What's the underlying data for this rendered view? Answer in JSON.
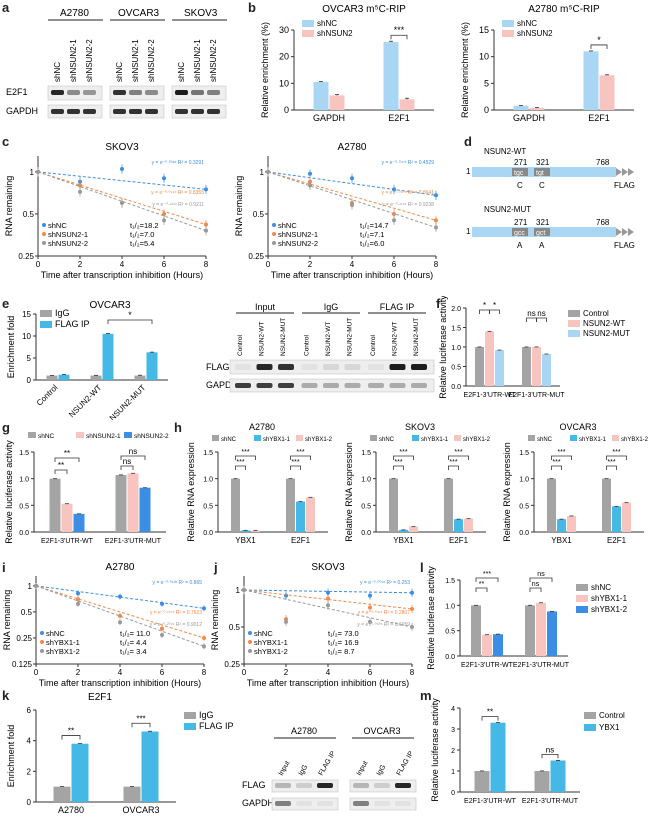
{
  "panel_labels": [
    "a",
    "b",
    "c",
    "d",
    "e",
    "f",
    "g",
    "h",
    "i",
    "j",
    "k",
    "l",
    "m"
  ],
  "colors": {
    "gray": "#a4a4a4",
    "blue": "#45b8e5",
    "pink": "#f7c4c0",
    "lightblue": "#a9d6f3",
    "darkblue": "#3c8ee5",
    "blot_dark": "#222"
  },
  "a": {
    "groups": [
      "A2780",
      "OVCAR3",
      "SKOV3"
    ],
    "lanes": [
      "shNC",
      "shNSUN2-1",
      "shNSUN2-2"
    ],
    "rows": [
      "E2F1",
      "GAPDH"
    ]
  },
  "b": {
    "charts": [
      {
        "title": "OVCAR3 m⁵C-RIP",
        "ylabel": "Relative enrichment (%)",
        "yticks": [
          "0",
          "10",
          "20",
          "30"
        ],
        "categories": [
          "GAPDH",
          "E2F1"
        ],
        "legend": [
          "shNC",
          "shNSUN2"
        ],
        "sig": "***"
      },
      {
        "title": "A2780  m⁵C-RIP",
        "ylabel": "Relative enrichment (%)",
        "yticks": [
          "0",
          "5",
          "10",
          "15"
        ],
        "categories": [
          "GAPDH",
          "E2F1"
        ],
        "legend": [
          "shNC",
          "shNSUN2"
        ],
        "sig": "*"
      }
    ]
  },
  "c": {
    "charts": [
      {
        "title": "SKOV3",
        "ylabel": "RNA remaining",
        "xlabel": "Time after transcription inhibition (Hours)",
        "xticks": [
          "0",
          "2",
          "4",
          "6",
          "8"
        ],
        "yticks": [
          "1",
          "0.5",
          "0.25"
        ],
        "legend": [
          {
            "name": "shNC",
            "t": "t₁/₂=18.2"
          },
          {
            "name": "shNSUN2-1",
            "t": "t₁/₂=7.0"
          },
          {
            "name": "shNSUN2-2",
            "t": "t₁/₂=5.4"
          }
        ],
        "fits": [
          "y = e⁻⁰·⁰³⁸ˣ  R² = 0.3291",
          "y = e⁻⁰·⁰⁹⁹ˣ  R² = 0.8355",
          "y = e⁻⁰·¹²⁸ˣ  R² = 0.9211"
        ]
      },
      {
        "title": "A2780",
        "ylabel": "RNA remaining",
        "xlabel": "Time after transcription inhibition (Hours)",
        "xticks": [
          "0",
          "2",
          "4",
          "6",
          "8"
        ],
        "yticks": [
          "1",
          "0.5",
          "0.25"
        ],
        "legend": [
          {
            "name": "shNC",
            "t": "t₁/₂=14.7"
          },
          {
            "name": "shNSUN2-1",
            "t": "t₁/₂=7.1"
          },
          {
            "name": "shNSUN2-2",
            "t": "t₁/₂=6.0"
          }
        ],
        "fits": [
          "y = e⁻⁰·⁰⁴⁷ˣ  R² = 0.4529",
          "y = e⁻⁰·⁰⁹⁷ˣ  R² = 0.8641",
          "y = e⁻⁰·¹¹⁵ˣ  R² = 0.9238"
        ]
      }
    ]
  },
  "d": {
    "wt": {
      "title": "NSUN2-WT",
      "start": "1",
      "p1": "271",
      "p2": "321",
      "end": "768",
      "c1": "tgc",
      "c2": "tgt",
      "a1": "C",
      "a2": "C",
      "tag": "FLAG"
    },
    "mut": {
      "title": "NSUN2-MUT",
      "start": "1",
      "p1": "271",
      "p2": "321",
      "end": "768",
      "c1": "gcc",
      "c2": "gct",
      "a1": "A",
      "a2": "A",
      "tag": "FLAG"
    }
  },
  "e": {
    "title": "OVCAR3",
    "ylabel": "Enrichment fold",
    "yticks": [
      "0",
      "5",
      "10",
      "15"
    ],
    "legend": [
      "IgG",
      "FLAG IP"
    ],
    "categories": [
      "Control",
      "NSUN2-WT",
      "NSUN2-MUT"
    ],
    "sig": "*",
    "blot": {
      "headers": [
        "Input",
        "IgG",
        "FLAG IP"
      ],
      "lanes": [
        "Control",
        "NSUN2-WT",
        "NSUN2-MUT",
        "Control",
        "NSUN2-WT",
        "NSUN2-MUT",
        "Control",
        "NSUN2-WT",
        "NSUN2-MUT"
      ],
      "rows": [
        "FLAG",
        "GAPDH"
      ]
    }
  },
  "f": {
    "ylabel": "Relative luciferase activity",
    "yticks": [
      "0.0",
      "0.5",
      "1.0",
      "1.5",
      "2.0"
    ],
    "categories": [
      "E2F1-3'UTR-WT",
      "E2F1-3'UTR-MUT"
    ],
    "legend": [
      "Control",
      "NSUN2-WT",
      "NSUN2-MUT"
    ],
    "sigs": [
      "*",
      "*",
      "ns",
      "ns"
    ]
  },
  "g": {
    "ylabel": "Relative luciferase activity",
    "yticks": [
      "0.0",
      "0.5",
      "1.0",
      "1.5"
    ],
    "categories": [
      "E2F1-3'UTR-WT",
      "E2F1-3'UTR-MUT"
    ],
    "legend": [
      "shNC",
      "shNSUN2-1",
      "shNSUN2-2"
    ],
    "sigs": [
      "**",
      "**",
      "ns",
      "ns"
    ]
  },
  "h": {
    "legend": [
      "shNC",
      "shYBX1-1",
      "shYBX1-2"
    ],
    "ylabel": "Relative RNA expression",
    "yticks": [
      "0.0",
      "0.5",
      "1.0",
      "1.5"
    ],
    "categories": [
      "YBX1",
      "E2F1"
    ],
    "charts": [
      {
        "title": "A2780"
      },
      {
        "title": "SKOV3"
      },
      {
        "title": "OVCAR3"
      }
    ],
    "sig": "***"
  },
  "i": {
    "title": "A2780",
    "ylabel": "RNA remaining",
    "xlabel": "Time after transcription inhibition (Hours)",
    "xticks": [
      "0",
      "2",
      "4",
      "6",
      "8"
    ],
    "yticks": [
      "1",
      "0.5",
      "0.25",
      "0.125"
    ],
    "legend": [
      {
        "name": "shNC",
        "t": "t₁/₂= 11.0"
      },
      {
        "name": "shYBX1-1",
        "t": "t₁/₂= 4.4"
      },
      {
        "name": "shYBX1-2",
        "t": "t₁/₂= 3.4"
      }
    ],
    "fits": [
      "y = e⁻⁰·⁰⁶³ˣ  R² = 0.865",
      "y = e⁻⁰·¹⁵⁷ˣ  R² = 0.7623",
      "y = e⁻⁰·²⁰⁴ˣ  R² = 0.9012"
    ]
  },
  "j": {
    "title": "SKOV3",
    "ylabel": "RNA remaining",
    "xlabel": "Time after transcription inhibition (Hours)",
    "xticks": [
      "0",
      "2",
      "4",
      "6",
      "8"
    ],
    "yticks": [
      "1",
      "0.5",
      "0.25"
    ],
    "legend": [
      {
        "name": "shNC",
        "t": "t₁/₂= 73.0"
      },
      {
        "name": "shYBX1-1",
        "t": "t₁/₂= 16.9"
      },
      {
        "name": "shYBX1-2",
        "t": "t₁/₂= 8.7"
      }
    ],
    "fits": [
      "y = e⁻⁰·⁰⁰⁹ˣ  R² = 0.253",
      "y = e⁻⁰·⁰⁴¹ˣ  R² = 0.2807",
      "y = e⁻⁰·⁰⁸⁰ˣ  R² = 0.6059"
    ]
  },
  "k": {
    "title": "E2F1",
    "ylabel": "Enrichment fold",
    "yticks": [
      "0",
      "2",
      "4",
      "6"
    ],
    "categories": [
      "A2780",
      "OVCAR3"
    ],
    "legend": [
      "IgG",
      "FLAG IP"
    ],
    "sigs": [
      "**",
      "***"
    ],
    "blots": [
      {
        "title": "A2780",
        "lanes": [
          "Input",
          "IgG",
          "FLAG IP"
        ]
      },
      {
        "title": "OVCAR3",
        "lanes": [
          "Input",
          "IgG",
          "FLAG IP"
        ]
      }
    ],
    "rows": [
      "FLAG",
      "GAPDH"
    ]
  },
  "l": {
    "ylabel": "Relative luciferase activity",
    "yticks": [
      "0.0",
      "0.5",
      "1.0",
      "1.5"
    ],
    "categories": [
      "E2F1-3'UTR-WT",
      "E2F1-3'UTR-MUT"
    ],
    "legend": [
      "shNC",
      "shYBX1-1",
      "shYBX1-2"
    ],
    "sigs": [
      "**",
      "***",
      "ns",
      "ns"
    ]
  },
  "m": {
    "ylabel": "Relative luciferase activity",
    "yticks": [
      "0",
      "1",
      "2",
      "3",
      "4"
    ],
    "categories": [
      "E2F1-3'UTR-WT",
      "E2F1-3'UTR-MUT"
    ],
    "legend": [
      "Control",
      "YBX1"
    ],
    "sigs": [
      "**",
      "ns"
    ]
  },
  "chart_data": [
    {
      "type": "bar",
      "panel": "b-left",
      "categories": [
        "GAPDH",
        "E2F1"
      ],
      "series": [
        {
          "name": "shNC",
          "values": [
            10.5,
            25.5
          ]
        },
        {
          "name": "shNSUN2",
          "values": [
            5.5,
            4.0
          ]
        }
      ],
      "ylim": [
        0,
        30
      ]
    },
    {
      "type": "bar",
      "panel": "b-right",
      "categories": [
        "GAPDH",
        "E2F1"
      ],
      "series": [
        {
          "name": "shNC",
          "values": [
            0.8,
            11.0
          ]
        },
        {
          "name": "shNSUN2",
          "values": [
            0.4,
            6.5
          ]
        }
      ],
      "ylim": [
        0,
        15
      ]
    },
    {
      "type": "scatter",
      "panel": "c-left",
      "x": [
        0,
        2,
        4,
        6,
        8
      ],
      "series": [
        {
          "name": "shNC",
          "values": [
            1.0,
            0.85,
            1.05,
            0.9,
            0.75
          ]
        },
        {
          "name": "shNSUN2-1",
          "values": [
            1.0,
            0.8,
            0.6,
            0.5,
            0.42
          ]
        },
        {
          "name": "shNSUN2-2",
          "values": [
            1.0,
            0.72,
            0.6,
            0.45,
            0.38
          ]
        }
      ],
      "ylim": [
        0.25,
        1.3
      ],
      "yscale": "log"
    },
    {
      "type": "scatter",
      "panel": "c-right",
      "x": [
        0,
        2,
        4,
        6,
        8
      ],
      "series": [
        {
          "name": "shNC",
          "values": [
            1.0,
            0.97,
            0.9,
            0.75,
            0.68
          ]
        },
        {
          "name": "shNSUN2-1",
          "values": [
            1.0,
            0.85,
            0.6,
            0.5,
            0.45
          ]
        },
        {
          "name": "shNSUN2-2",
          "values": [
            1.0,
            0.8,
            0.58,
            0.45,
            0.4
          ]
        }
      ],
      "ylim": [
        0.25,
        1.3
      ],
      "yscale": "log"
    },
    {
      "type": "bar",
      "panel": "e",
      "categories": [
        "Control",
        "NSUN2-WT",
        "NSUN2-MUT"
      ],
      "series": [
        {
          "name": "IgG",
          "values": [
            1.0,
            1.0,
            1.0
          ]
        },
        {
          "name": "FLAG IP",
          "values": [
            1.2,
            10.5,
            6.3
          ]
        }
      ],
      "ylim": [
        0,
        15
      ]
    },
    {
      "type": "bar",
      "panel": "f",
      "categories": [
        "E2F1-3'UTR-WT",
        "E2F1-3'UTR-MUT"
      ],
      "series": [
        {
          "name": "Control",
          "values": [
            1.0,
            1.0
          ]
        },
        {
          "name": "NSUN2-WT",
          "values": [
            1.4,
            1.0
          ]
        },
        {
          "name": "NSUN2-MUT",
          "values": [
            0.92,
            0.82
          ]
        }
      ],
      "ylim": [
        0,
        2
      ]
    },
    {
      "type": "bar",
      "panel": "g",
      "categories": [
        "E2F1-3'UTR-WT",
        "E2F1-3'UTR-MUT"
      ],
      "series": [
        {
          "name": "shNC",
          "values": [
            1.0,
            1.07
          ]
        },
        {
          "name": "shNSUN2-1",
          "values": [
            0.53,
            1.1
          ]
        },
        {
          "name": "shNSUN2-2",
          "values": [
            0.34,
            0.83
          ]
        }
      ],
      "ylim": [
        0,
        1.5
      ]
    },
    {
      "type": "bar",
      "panel": "h-A2780",
      "categories": [
        "YBX1",
        "E2F1"
      ],
      "series": [
        {
          "name": "shNC",
          "values": [
            1.0,
            1.0
          ]
        },
        {
          "name": "shYBX1-1",
          "values": [
            0.03,
            0.57
          ]
        },
        {
          "name": "shYBX1-2",
          "values": [
            0.03,
            0.65
          ]
        }
      ],
      "ylim": [
        0,
        1.5
      ]
    },
    {
      "type": "bar",
      "panel": "h-SKOV3",
      "categories": [
        "YBX1",
        "E2F1"
      ],
      "series": [
        {
          "name": "shNC",
          "values": [
            1.0,
            1.0
          ]
        },
        {
          "name": "shYBX1-1",
          "values": [
            0.04,
            0.24
          ]
        },
        {
          "name": "shYBX1-2",
          "values": [
            0.1,
            0.25
          ]
        }
      ],
      "ylim": [
        0,
        1.5
      ]
    },
    {
      "type": "bar",
      "panel": "h-OVCAR3",
      "categories": [
        "YBX1",
        "E2F1"
      ],
      "series": [
        {
          "name": "shNC",
          "values": [
            1.0,
            1.0
          ]
        },
        {
          "name": "shYBX1-1",
          "values": [
            0.24,
            0.48
          ]
        },
        {
          "name": "shYBX1-2",
          "values": [
            0.3,
            0.55
          ]
        }
      ],
      "ylim": [
        0,
        1.5
      ]
    },
    {
      "type": "scatter",
      "panel": "i",
      "x": [
        0,
        2,
        4,
        6,
        8
      ],
      "series": [
        {
          "name": "shNC",
          "values": [
            1.0,
            0.82,
            0.75,
            0.62,
            0.55
          ]
        },
        {
          "name": "shYBX1-1",
          "values": [
            1.0,
            0.7,
            0.45,
            0.32,
            0.25
          ]
        },
        {
          "name": "shYBX1-2",
          "values": [
            1.0,
            0.62,
            0.38,
            0.27,
            0.2
          ]
        }
      ],
      "ylim": [
        0.125,
        1.3
      ],
      "yscale": "log"
    },
    {
      "type": "scatter",
      "panel": "j",
      "x": [
        0,
        2,
        4,
        6,
        8
      ],
      "series": [
        {
          "name": "shNC",
          "values": [
            1.0,
            0.9,
            0.95,
            0.9,
            0.95
          ]
        },
        {
          "name": "shYBX1-1",
          "values": [
            1.0,
            0.58,
            0.85,
            0.72,
            0.7
          ]
        },
        {
          "name": "shYBX1-2",
          "values": [
            1.0,
            0.55,
            0.75,
            0.55,
            0.5
          ]
        }
      ],
      "ylim": [
        0.25,
        1.3
      ],
      "yscale": "log"
    },
    {
      "type": "bar",
      "panel": "k",
      "categories": [
        "A2780",
        "OVCAR3"
      ],
      "series": [
        {
          "name": "IgG",
          "values": [
            1.0,
            1.0
          ]
        },
        {
          "name": "FLAG IP",
          "values": [
            3.8,
            4.6
          ]
        }
      ],
      "ylim": [
        0,
        6
      ]
    },
    {
      "type": "bar",
      "panel": "l",
      "categories": [
        "E2F1-3'UTR-WT",
        "E2F1-3'UTR-MUT"
      ],
      "series": [
        {
          "name": "shNC",
          "values": [
            1.0,
            1.0
          ]
        },
        {
          "name": "shYBX1-1",
          "values": [
            0.42,
            1.05
          ]
        },
        {
          "name": "shYBX1-2",
          "values": [
            0.43,
            0.88
          ]
        }
      ],
      "ylim": [
        0,
        1.5
      ]
    },
    {
      "type": "bar",
      "panel": "m",
      "categories": [
        "E2F1-3'UTR-WT",
        "E2F1-3'UTR-MUT"
      ],
      "series": [
        {
          "name": "Control",
          "values": [
            1.0,
            1.0
          ]
        },
        {
          "name": "YBX1",
          "values": [
            3.3,
            1.5
          ]
        }
      ],
      "ylim": [
        0,
        4
      ]
    }
  ]
}
